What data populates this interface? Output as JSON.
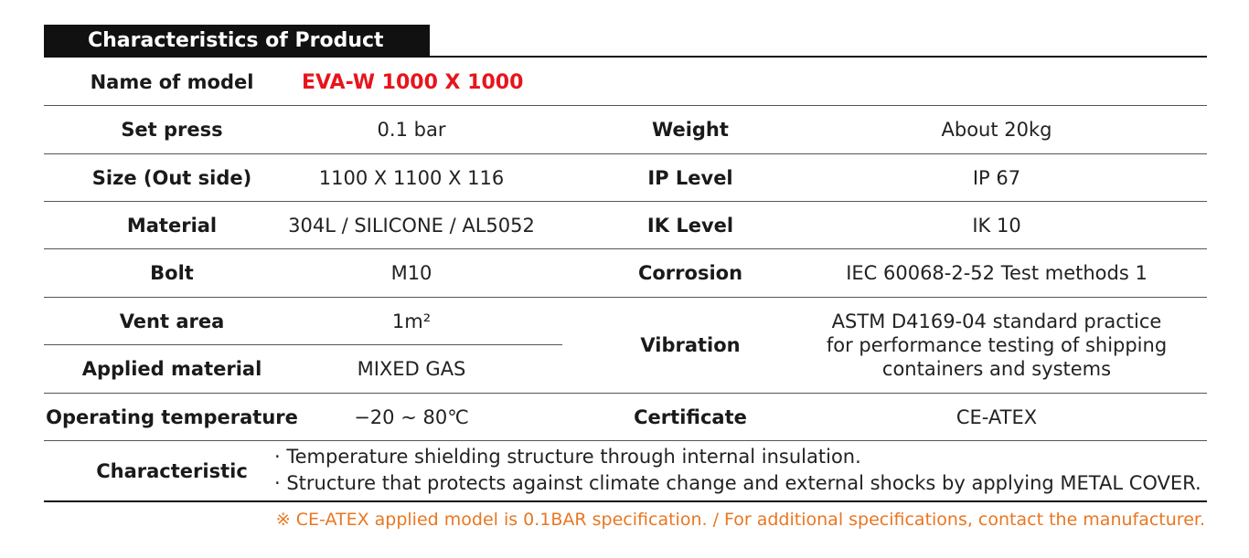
{
  "header": {
    "title": "Characteristics of Product"
  },
  "model": {
    "label": "Name of model",
    "value": "EVA-W 1000 X 1000"
  },
  "left_rows": [
    {
      "label": "Set press",
      "value": "0.1 bar"
    },
    {
      "label": "Size (Out side)",
      "value": "1100 X 1100 X 116"
    },
    {
      "label": "Material",
      "value": "304L / SILICONE / AL5052"
    },
    {
      "label": "Bolt",
      "value": "M10"
    },
    {
      "label": "Vent area",
      "value": "1m²"
    },
    {
      "label": "Applied material",
      "value": "MIXED GAS"
    },
    {
      "label": "Operating temperature",
      "value": "−20 ~ 80℃"
    }
  ],
  "right_rows": [
    {
      "label": "Weight",
      "value": "About 20kg"
    },
    {
      "label": "IP Level",
      "value": "IP 67"
    },
    {
      "label": "IK Level",
      "value": "IK 10"
    },
    {
      "label": "Corrosion",
      "value": "IEC 60068-2-52 Test methods 1"
    },
    {
      "label": "Vibration",
      "lines": [
        "ASTM D4169-04 standard practice",
        "for performance testing of shipping",
        "containers and systems"
      ]
    },
    {
      "label": "Certificate",
      "value": "CE-ATEX"
    }
  ],
  "characteristic": {
    "label": "Characteristic",
    "items": [
      "· Temperature shielding structure through internal insulation.",
      "· Structure that protects against climate change and external shocks by applying METAL COVER."
    ]
  },
  "footnote": "※ CE-ATEX applied model is 0.1BAR specification. / For additional specifications, contact the manufacturer."
}
